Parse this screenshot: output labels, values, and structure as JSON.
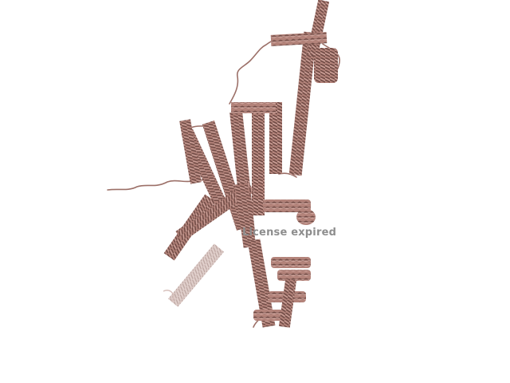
{
  "viewer": {
    "background_color": "#ffffff",
    "structure_style": "cartoon",
    "structure_color": "#b3837a",
    "structure_shadow_color": "#6e4a44",
    "structure_highlight_color": "#d9b3ab",
    "faded_color": "#c9aaa4"
  },
  "watermark": {
    "text": "License expired",
    "color": "#8e8e8e"
  }
}
